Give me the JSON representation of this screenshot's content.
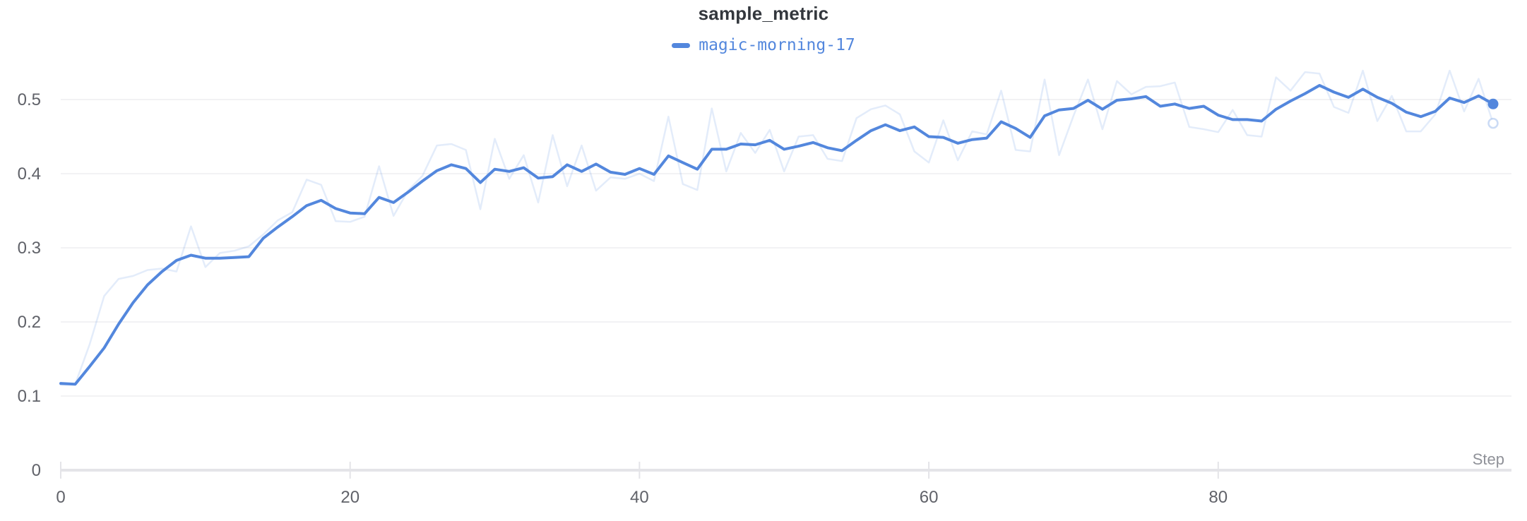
{
  "panel": {
    "title": "sample_metric"
  },
  "legend": {
    "run_name": "magic-morning-17",
    "color": "#5387DD"
  },
  "axis": {
    "x_axis_label": "Step"
  },
  "colors": {
    "run": "#5387DD",
    "run_raw_opacity": 0.16,
    "title_text": "#33373D",
    "tick_label": "#606269",
    "axis_label_muted": "#8F9198",
    "gridline": "#EDEDF0",
    "axis_line": "#E4E4E8",
    "background": "#FFFFFF"
  },
  "chart_data": {
    "type": "line",
    "title": "sample_metric",
    "xlabel": "Step",
    "ylabel": "",
    "grid": true,
    "legend_position": "top-center",
    "xlim": [
      0,
      100
    ],
    "ylim": [
      0,
      0.55
    ],
    "x_ticks": [
      0,
      20,
      40,
      60,
      80
    ],
    "y_ticks": [
      0,
      0.1,
      0.2,
      0.3,
      0.4,
      0.5
    ],
    "x_start": 0,
    "x_step": 1,
    "n_points": 100,
    "series": [
      {
        "name": "magic-morning-17 (smoothed)",
        "color": "#5387DD",
        "opacity": 1,
        "stroke_width": 4,
        "values": [
          0.117,
          0.116,
          0.14,
          0.165,
          0.197,
          0.226,
          0.25,
          0.268,
          0.283,
          0.29,
          0.286,
          0.286,
          0.287,
          0.288,
          0.313,
          0.328,
          0.342,
          0.357,
          0.364,
          0.353,
          0.347,
          0.346,
          0.368,
          0.361,
          0.375,
          0.39,
          0.404,
          0.412,
          0.407,
          0.388,
          0.406,
          0.403,
          0.408,
          0.394,
          0.396,
          0.412,
          0.403,
          0.413,
          0.402,
          0.399,
          0.407,
          0.399,
          0.424,
          0.415,
          0.406,
          0.433,
          0.433,
          0.44,
          0.439,
          0.445,
          0.433,
          0.437,
          0.442,
          0.435,
          0.431,
          0.445,
          0.458,
          0.466,
          0.458,
          0.463,
          0.45,
          0.449,
          0.441,
          0.446,
          0.448,
          0.47,
          0.461,
          0.449,
          0.478,
          0.486,
          0.488,
          0.499,
          0.487,
          0.499,
          0.501,
          0.504,
          0.491,
          0.494,
          0.488,
          0.491,
          0.479,
          0.473,
          0.473,
          0.471,
          0.487,
          0.498,
          0.508,
          0.519,
          0.51,
          0.503,
          0.514,
          0.503,
          0.495,
          0.483,
          0.477,
          0.484,
          0.502,
          0.496,
          0.505,
          0.494
        ]
      },
      {
        "name": "magic-morning-17 (original)",
        "color": "#5387DD",
        "opacity": 0.16,
        "stroke_width": 2.5,
        "values": [
          0.115,
          0.116,
          0.17,
          0.235,
          0.258,
          0.262,
          0.27,
          0.272,
          0.268,
          0.329,
          0.274,
          0.293,
          0.296,
          0.302,
          0.318,
          0.337,
          0.348,
          0.392,
          0.385,
          0.336,
          0.335,
          0.342,
          0.41,
          0.343,
          0.377,
          0.397,
          0.438,
          0.44,
          0.432,
          0.352,
          0.447,
          0.393,
          0.425,
          0.361,
          0.452,
          0.383,
          0.438,
          0.377,
          0.395,
          0.393,
          0.4,
          0.39,
          0.477,
          0.386,
          0.378,
          0.488,
          0.403,
          0.455,
          0.428,
          0.459,
          0.403,
          0.45,
          0.452,
          0.42,
          0.417,
          0.475,
          0.487,
          0.492,
          0.48,
          0.43,
          0.415,
          0.472,
          0.418,
          0.457,
          0.453,
          0.512,
          0.432,
          0.43,
          0.527,
          0.425,
          0.478,
          0.527,
          0.46,
          0.525,
          0.507,
          0.517,
          0.518,
          0.523,
          0.463,
          0.46,
          0.456,
          0.486,
          0.452,
          0.45,
          0.53,
          0.512,
          0.537,
          0.535,
          0.49,
          0.482,
          0.539,
          0.471,
          0.505,
          0.457,
          0.457,
          0.48,
          0.539,
          0.484,
          0.528,
          0.468
        ]
      }
    ],
    "end_markers": {
      "smoothed": {
        "step": 99,
        "value": 0.494,
        "style": "filled"
      },
      "original": {
        "step": 99,
        "value": 0.468,
        "style": "hollow"
      }
    }
  }
}
